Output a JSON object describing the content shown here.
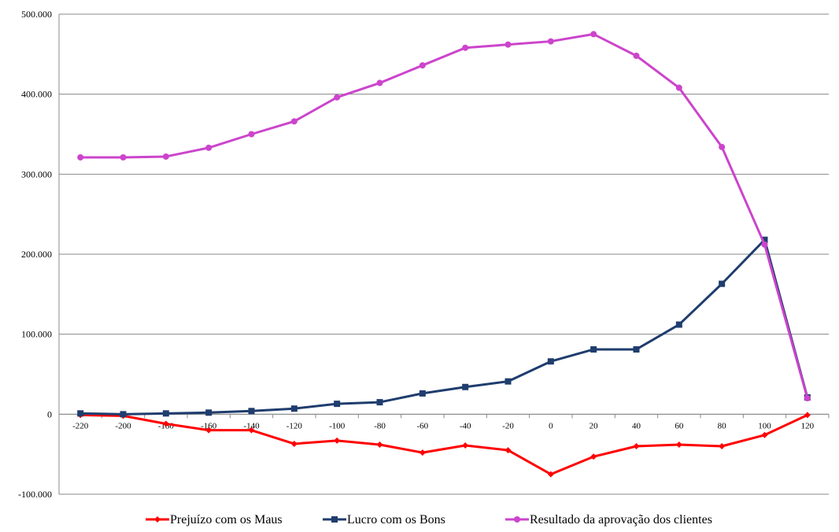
{
  "chart_data": {
    "type": "line",
    "title": "",
    "xlabel": "",
    "ylabel": "",
    "categories": [
      "-220",
      "-200",
      "-180",
      "-160",
      "-140",
      "-120",
      "-100",
      "-80",
      "-60",
      "-40",
      "-20",
      "0",
      "20",
      "40",
      "60",
      "80",
      "100",
      "120"
    ],
    "y_ticks": [
      -100000,
      0,
      100000,
      200000,
      300000,
      400000,
      500000
    ],
    "y_tick_labels": [
      "-100.000",
      "0",
      "100.000",
      "200.000",
      "300.000",
      "400.000",
      "500.000"
    ],
    "ylim": [
      -100000,
      500000
    ],
    "grid": true,
    "legend_position": "bottom",
    "series": [
      {
        "name": "Prejuízo com os Maus",
        "color": "#ff0000",
        "marker": "diamond",
        "values": [
          -1000,
          -2000,
          -12000,
          -20000,
          -20000,
          -37000,
          -33000,
          -38000,
          -48000,
          -39000,
          -45000,
          -75000,
          -53000,
          -40000,
          -38000,
          -40000,
          -26000,
          -1000
        ]
      },
      {
        "name": "Lucro com os Bons",
        "color": "#1f3d6e",
        "marker": "square",
        "values": [
          1000,
          0,
          1000,
          2000,
          4000,
          7000,
          13000,
          15000,
          26000,
          34000,
          41000,
          66000,
          81000,
          81000,
          112000,
          163000,
          218000,
          21000
        ]
      },
      {
        "name": "Resultado da aprovação dos clientes",
        "color": "#cc44cc",
        "marker": "circle",
        "values": [
          321000,
          321000,
          322000,
          333000,
          350000,
          366000,
          396000,
          414000,
          436000,
          458000,
          462000,
          466000,
          475000,
          448000,
          408000,
          334000,
          212000,
          20000
        ]
      }
    ]
  }
}
